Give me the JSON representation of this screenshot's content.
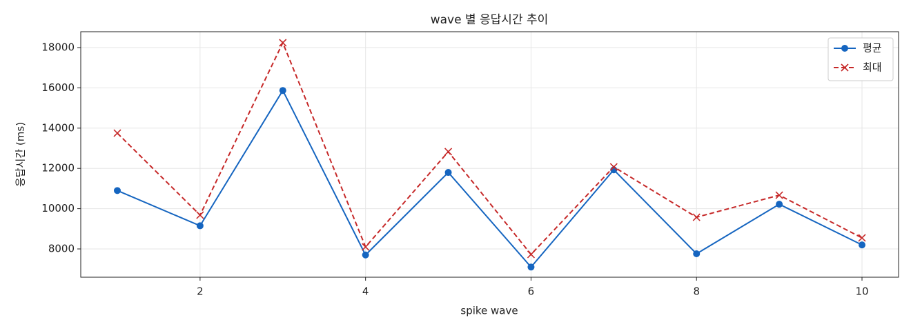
{
  "chart_data": {
    "type": "line",
    "title": "wave 별 응답시간 추이",
    "xlabel": "spike wave",
    "ylabel": "응답시간 (ms)",
    "x": [
      1,
      2,
      3,
      4,
      5,
      6,
      7,
      8,
      9,
      10
    ],
    "series": [
      {
        "name": "평균",
        "color": "#1565c0",
        "marker": "o",
        "linestyle": "solid",
        "values": [
          10900,
          9150,
          15870,
          7700,
          11800,
          7100,
          11930,
          7760,
          10220,
          8200
        ]
      },
      {
        "name": "최대",
        "color": "#c62828",
        "marker": "x",
        "linestyle": "dashed",
        "values": [
          13750,
          9680,
          18240,
          8100,
          12830,
          7730,
          12075,
          9575,
          10670,
          8550
        ]
      }
    ],
    "xlim": [
      0.558,
      10.442
    ],
    "ylim": [
      6596,
      18788
    ],
    "xticks": [
      2,
      4,
      6,
      8,
      10
    ],
    "yticks": [
      8000,
      10000,
      12000,
      14000,
      16000,
      18000
    ],
    "grid": true,
    "legend": "upper right"
  }
}
